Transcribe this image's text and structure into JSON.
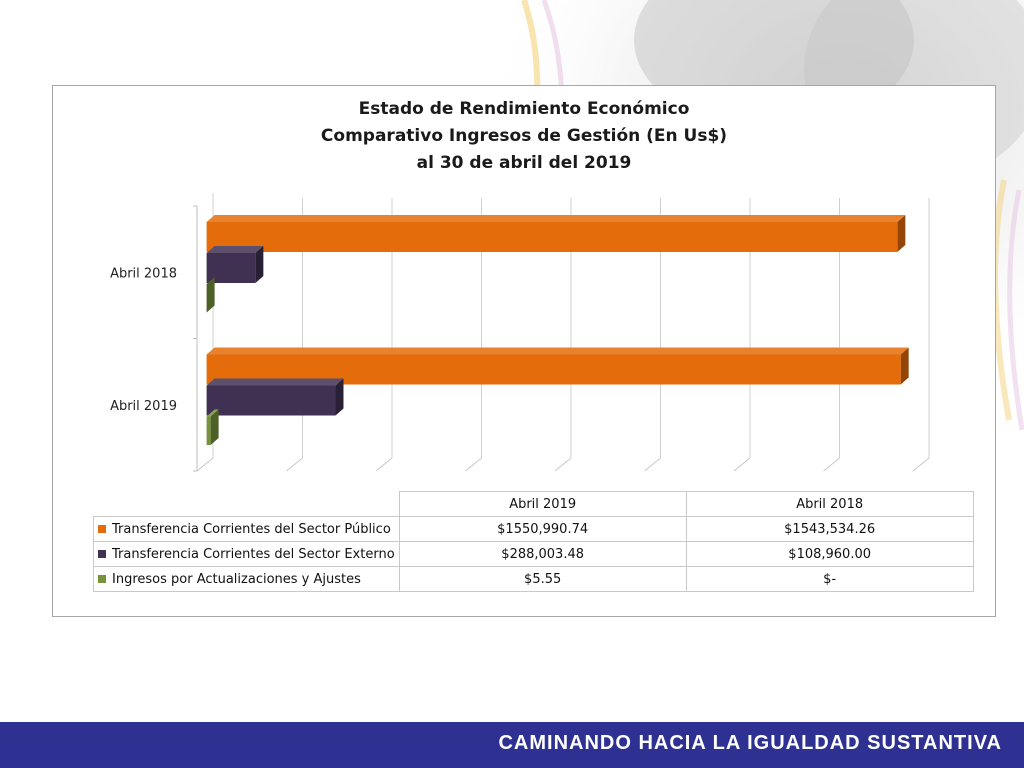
{
  "chart_data": {
    "type": "bar",
    "orientation": "horizontal",
    "title_lines": [
      "Estado de Rendimiento Económico",
      "Comparativo  Ingresos de Gestión (En Us$)",
      "al 30  de  abril  del 2019"
    ],
    "categories": [
      "Abril 2019",
      "Abril 2018"
    ],
    "series": [
      {
        "name": "Transferencia Corrientes del Sector Público",
        "color": "#e46c0a",
        "values": [
          1550990.74,
          1543534.26
        ],
        "labels": [
          "$1550,990.74",
          "$1543,534.26"
        ]
      },
      {
        "name": "Transferencia Corrientes del Sector Externo",
        "color": "#403152",
        "values": [
          288003.48,
          108960.0
        ],
        "labels": [
          "$288,003.48",
          "$108,960.00"
        ]
      },
      {
        "name": "Ingresos por Actualizaciones y Ajustes",
        "color": "#77933c",
        "values": [
          5.55,
          0
        ],
        "labels": [
          "$5.55",
          "$-"
        ]
      }
    ],
    "xlim": [
      0,
      1600000
    ],
    "grid": true,
    "legend": "data-table-below"
  },
  "footer": {
    "text": "CAMINANDO HACIA LA IGUALDAD SUSTANTIVA"
  },
  "colors": {
    "footer_bg": "#2e3192",
    "frame_border": "#a6a6a6"
  }
}
